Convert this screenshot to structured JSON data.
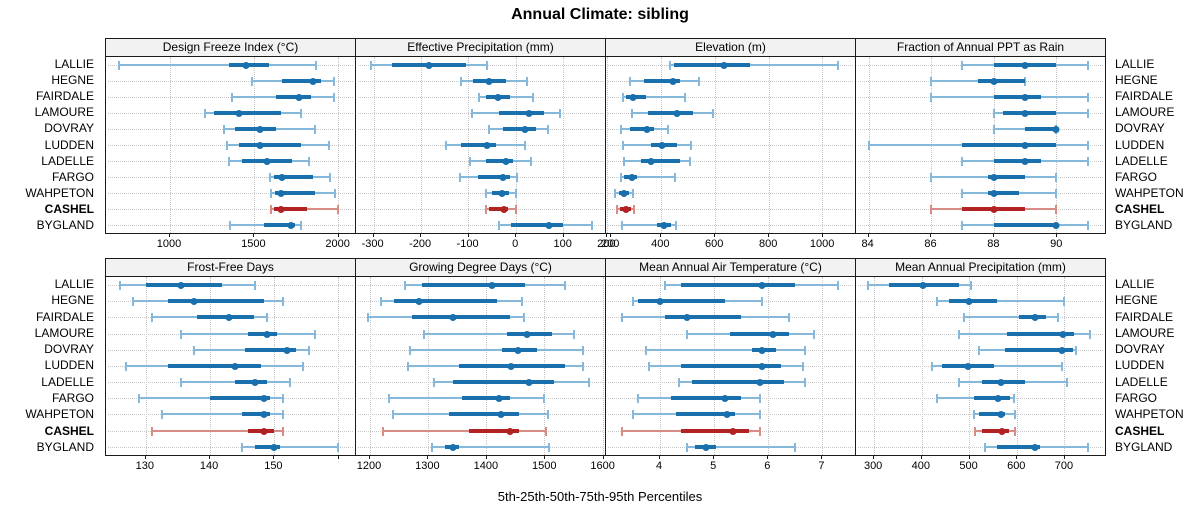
{
  "title": "Annual Climate: sibling",
  "caption": "5th-25th-50th-75th-95th Percentiles",
  "percentiles": [
    5,
    25,
    50,
    75,
    95
  ],
  "locations": [
    "LALLIE",
    "HEGNE",
    "FAIRDALE",
    "LAMOURE",
    "DOVRAY",
    "LUDDEN",
    "LADELLE",
    "FARGO",
    "WAHPETON",
    "CASHEL",
    "BYGLAND"
  ],
  "highlight_location": "CASHEL",
  "colors": {
    "blue_dark": "#1a6fad",
    "blue_light": "#85b8da",
    "red_dark": "#b22222",
    "red_light": "#d98c85",
    "grid": "#c6c6c6",
    "strip_bg": "#f2f2f2",
    "border": "#1a1a1a"
  },
  "chart_data": [
    {
      "type": "percentile-dotplot",
      "title": "Design Freeze Index (°C)",
      "xlim": [
        620,
        2103
      ],
      "ticks": [
        1000,
        1500,
        2000
      ],
      "minor_ticks": [],
      "values": [
        [
          700,
          1355,
          1455,
          1590,
          1870
        ],
        [
          1490,
          1670,
          1855,
          1900,
          1975
        ],
        [
          1370,
          1635,
          1770,
          1840,
          1975
        ],
        [
          1210,
          1265,
          1410,
          1660,
          1780
        ],
        [
          1320,
          1390,
          1535,
          1630,
          1865
        ],
        [
          1340,
          1410,
          1535,
          1780,
          1950
        ],
        [
          1350,
          1430,
          1580,
          1725,
          1830
        ],
        [
          1595,
          1620,
          1670,
          1855,
          1955
        ],
        [
          1600,
          1625,
          1660,
          1865,
          1985
        ],
        [
          1600,
          1620,
          1660,
          1820,
          2000
        ],
        [
          1360,
          1560,
          1720,
          1745,
          1780
        ]
      ]
    },
    {
      "type": "percentile-dotplot",
      "title": "Effective Precipitation (mm)",
      "xlim": [
        -337,
        189
      ],
      "ticks": [
        -300,
        -200,
        -100,
        0,
        100,
        200
      ],
      "minor_ticks": [],
      "values": [
        [
          -305,
          -260,
          -183,
          -105,
          -60
        ],
        [
          -115,
          -90,
          -57,
          -20,
          24
        ],
        [
          -78,
          -62,
          -37,
          -11,
          37
        ],
        [
          -92,
          -34,
          28,
          60,
          94
        ],
        [
          -57,
          -27,
          19,
          44,
          69
        ],
        [
          -147,
          -115,
          -61,
          -41,
          21
        ],
        [
          -96,
          -62,
          -20,
          -6,
          33
        ],
        [
          -118,
          -80,
          -27,
          -11,
          4
        ],
        [
          -62,
          -50,
          -28,
          -13,
          0
        ],
        [
          -62,
          -55,
          -25,
          -16,
          0
        ],
        [
          -34,
          -9,
          71,
          101,
          161
        ]
      ]
    },
    {
      "type": "percentile-dotplot",
      "title": "Elevation (m)",
      "xlim": [
        195,
        1122
      ],
      "ticks": [
        200,
        400,
        600,
        800,
        1000
      ],
      "minor_ticks": [],
      "values": [
        [
          435,
          450,
          635,
          730,
          1060
        ],
        [
          285,
          337,
          443,
          470,
          543
        ],
        [
          257,
          268,
          296,
          345,
          490
        ],
        [
          290,
          350,
          459,
          520,
          595
        ],
        [
          251,
          284,
          348,
          373,
          424
        ],
        [
          260,
          363,
          402,
          459,
          510
        ],
        [
          263,
          327,
          363,
          471,
          506
        ],
        [
          251,
          263,
          290,
          309,
          452
        ],
        [
          229,
          244,
          263,
          280,
          296
        ],
        [
          235,
          248,
          268,
          288,
          300
        ],
        [
          254,
          385,
          410,
          437,
          455
        ]
      ]
    },
    {
      "type": "percentile-dotplot",
      "title": "Fraction of Annual PPT as Rain",
      "xlim": [
        83.6,
        91.55
      ],
      "ticks": [
        84,
        86,
        88,
        90
      ],
      "minor_ticks": [],
      "values": [
        [
          87,
          88,
          89,
          90,
          91
        ],
        [
          86,
          87.5,
          88,
          89,
          89
        ],
        [
          86,
          88,
          89,
          89.5,
          91
        ],
        [
          88,
          88.3,
          89,
          90,
          91
        ],
        [
          88,
          89,
          90,
          90,
          90
        ],
        [
          84,
          87,
          89,
          90,
          91
        ],
        [
          87,
          88,
          89,
          89.5,
          91
        ],
        [
          86,
          87.8,
          88,
          89,
          90
        ],
        [
          87,
          87.8,
          88,
          88.8,
          90
        ],
        [
          86,
          87,
          88,
          89,
          90
        ],
        [
          87,
          88,
          90,
          90,
          91
        ]
      ]
    },
    {
      "type": "percentile-dotplot",
      "title": "Frost-Free Days",
      "xlim": [
        123.8,
        162.7
      ],
      "ticks": [
        130,
        140,
        150
      ],
      "minor_ticks": [
        160
      ],
      "values": [
        [
          126,
          130,
          135.5,
          142,
          147
        ],
        [
          128,
          133.5,
          137.5,
          148.5,
          151.5
        ],
        [
          131,
          138,
          143,
          147,
          149
        ],
        [
          135.5,
          146,
          149,
          150.5,
          156.5
        ],
        [
          137.5,
          145.5,
          152,
          153.5,
          155.5
        ],
        [
          127,
          133.5,
          144,
          148,
          154.5
        ],
        [
          135.5,
          144,
          147,
          149,
          152.5
        ],
        [
          129,
          140,
          148.5,
          149.5,
          151.5
        ],
        [
          132.5,
          145,
          148.5,
          149.5,
          151.5
        ],
        [
          131,
          146,
          148.5,
          150,
          151.5
        ],
        [
          145,
          147,
          150,
          151,
          160
        ]
      ]
    },
    {
      "type": "percentile-dotplot",
      "title": "Growing Degree Days (°C)",
      "xlim": [
        1176,
        1604
      ],
      "ticks": [
        1200,
        1300,
        1400,
        1500,
        1600
      ],
      "minor_ticks": [],
      "values": [
        [
          1260,
          1290,
          1410,
          1467,
          1536
        ],
        [
          1219,
          1242,
          1285,
          1419,
          1461
        ],
        [
          1196,
          1272,
          1343,
          1440,
          1465
        ],
        [
          1293,
          1436,
          1470,
          1513,
          1550
        ],
        [
          1269,
          1427,
          1455,
          1487,
          1566
        ],
        [
          1266,
          1353,
          1443,
          1535,
          1567
        ],
        [
          1310,
          1342,
          1474,
          1516,
          1576
        ],
        [
          1233,
          1358,
          1422,
          1440,
          1499
        ],
        [
          1239,
          1335,
          1426,
          1456,
          1506
        ],
        [
          1223,
          1370,
          1440,
          1456,
          1503
        ],
        [
          1307,
          1329,
          1342,
          1353,
          1507
        ]
      ]
    },
    {
      "type": "percentile-dotplot",
      "title": "Mean Annual Air Temperature (°C)",
      "xlim": [
        3.0,
        7.62
      ],
      "ticks": [
        4,
        5,
        6,
        7
      ],
      "minor_ticks": [],
      "values": [
        [
          4.1,
          4.4,
          5.9,
          6.5,
          7.3
        ],
        [
          3.5,
          3.6,
          4.0,
          5.2,
          5.9
        ],
        [
          3.3,
          4.1,
          4.5,
          5.5,
          6.4
        ],
        [
          4.5,
          5.3,
          6.1,
          6.4,
          6.85
        ],
        [
          3.75,
          5.7,
          5.9,
          6.15,
          6.7
        ],
        [
          3.8,
          4.4,
          5.9,
          6.25,
          6.65
        ],
        [
          4.35,
          4.6,
          5.85,
          6.3,
          6.7
        ],
        [
          3.6,
          4.2,
          5.2,
          5.5,
          5.85
        ],
        [
          3.5,
          4.3,
          5.25,
          5.4,
          5.85
        ],
        [
          3.3,
          4.4,
          5.35,
          5.65,
          5.85
        ],
        [
          4.5,
          4.65,
          4.85,
          5.05,
          6.5
        ]
      ]
    },
    {
      "type": "percentile-dotplot",
      "title": "Mean Annual Precipitation (mm)",
      "xlim": [
        262,
        786
      ],
      "ticks": [
        300,
        400,
        500,
        600,
        700
      ],
      "minor_ticks": [],
      "values": [
        [
          288,
          332,
          403,
          478,
          505
        ],
        [
          433,
          457,
          499,
          559,
          700
        ],
        [
          489,
          604,
          638,
          662,
          687
        ],
        [
          478,
          580,
          697,
          720,
          755
        ],
        [
          520,
          576,
          695,
          718,
          725
        ],
        [
          421,
          443,
          498,
          552,
          695
        ],
        [
          478,
          527,
          567,
          618,
          707
        ],
        [
          433,
          510,
          561,
          587,
          594
        ],
        [
          510,
          520,
          567,
          576,
          596
        ],
        [
          512,
          527,
          569,
          583,
          597
        ],
        [
          533,
          559,
          639,
          650,
          751
        ]
      ]
    }
  ]
}
